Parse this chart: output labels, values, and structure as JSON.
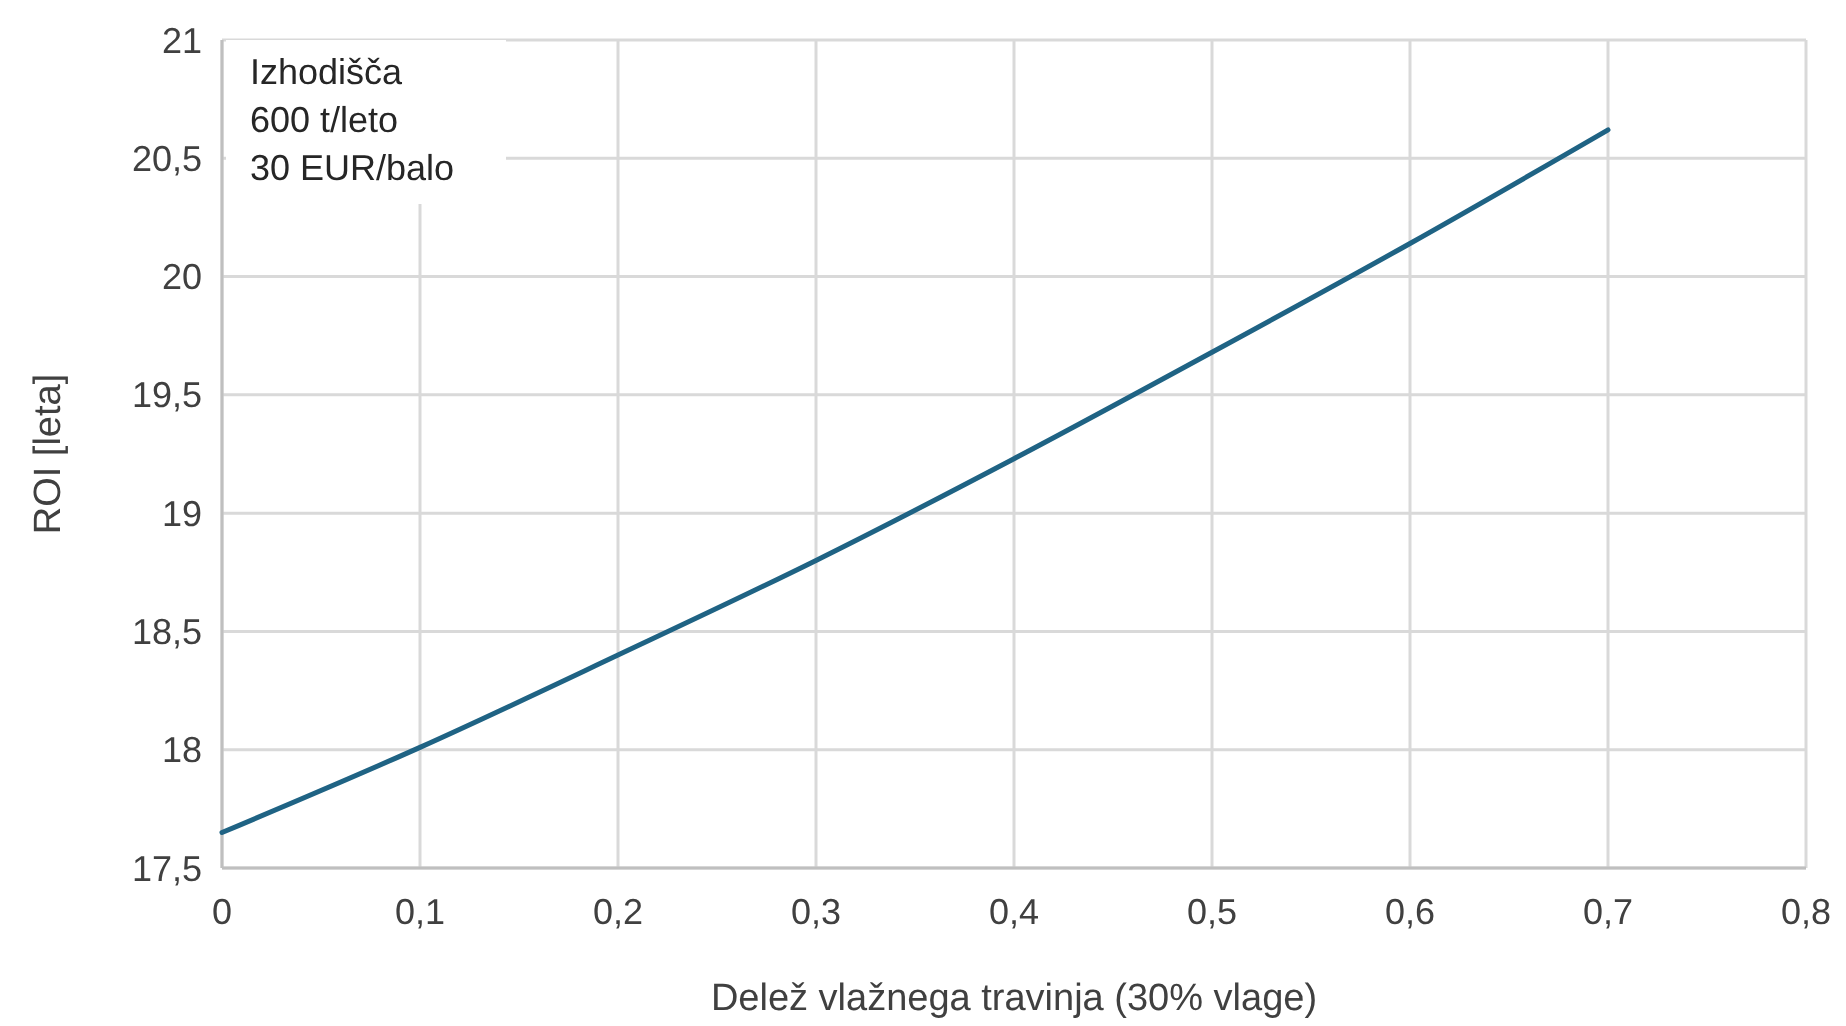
{
  "chart_data": {
    "type": "line",
    "xlabel": "Delež vlažnega travinja (30% vlage)",
    "ylabel": "ROI [leta]",
    "annotations": [
      "Izhodišča",
      "600 t/leto",
      "30 EUR/balo"
    ],
    "x": [
      0,
      0.1,
      0.2,
      0.3,
      0.4,
      0.5,
      0.6,
      0.7
    ],
    "series": [
      {
        "color": "#1f6384",
        "values": [
          17.65,
          18.01,
          18.4,
          18.8,
          19.23,
          19.68,
          20.14,
          20.62
        ]
      }
    ],
    "xlim": [
      0,
      0.8
    ],
    "xticks": [
      {
        "value": 0,
        "label": "0"
      },
      {
        "value": 0.1,
        "label": "0,1"
      },
      {
        "value": 0.2,
        "label": "0,2"
      },
      {
        "value": 0.3,
        "label": "0,3"
      },
      {
        "value": 0.4,
        "label": "0,4"
      },
      {
        "value": 0.5,
        "label": "0,5"
      },
      {
        "value": 0.6,
        "label": "0,6"
      },
      {
        "value": 0.7,
        "label": "0,7"
      },
      {
        "value": 0.8,
        "label": "0,8"
      }
    ],
    "ylim": [
      17.5,
      21
    ],
    "yticks": [
      {
        "value": 17.5,
        "label": "17,5"
      },
      18,
      {
        "value": 18.5,
        "label": "18,5"
      },
      19,
      {
        "value": 19.5,
        "label": "19,5"
      },
      20,
      {
        "value": 20.5,
        "label": "20,5"
      },
      21
    ],
    "grid": true,
    "line_style": "solid",
    "marker": "none"
  }
}
